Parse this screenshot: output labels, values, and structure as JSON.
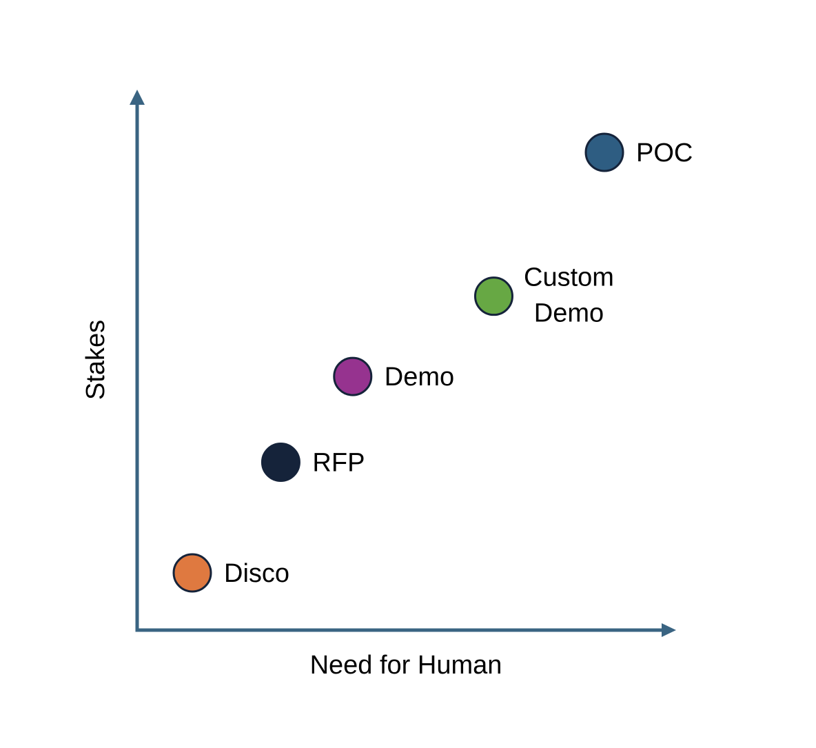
{
  "chart_data": {
    "type": "scatter",
    "title": "",
    "xlabel": "Need for Human",
    "ylabel": "Stakes",
    "grid": false,
    "legend": "none",
    "axis_color": "#3a6482",
    "points": [
      {
        "label": [
          "Disco"
        ],
        "x": 1.0,
        "y": 1.0,
        "color": "#df7940"
      },
      {
        "label": [
          "RFP"
        ],
        "x": 2.6,
        "y": 3.0,
        "color": "#15233a"
      },
      {
        "label": [
          "Demo"
        ],
        "x": 3.9,
        "y": 4.55,
        "color": "#96338f"
      },
      {
        "label": [
          "Custom",
          "Demo"
        ],
        "x": 6.45,
        "y": 6.0,
        "color": "#67a844"
      },
      {
        "label": [
          "POC"
        ],
        "x": 8.45,
        "y": 8.6,
        "color": "#2e5d82"
      }
    ]
  }
}
